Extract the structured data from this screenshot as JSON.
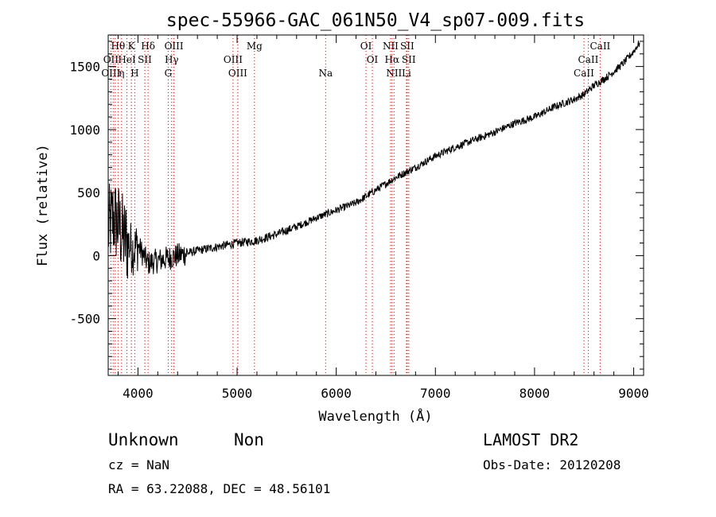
{
  "chart_data": {
    "type": "line",
    "title": "spec-55966-GAC_061N50_V4_sp07-009.fits",
    "xlabel": "Wavelength (Å)",
    "ylabel": "Flux (relative)",
    "xlim": [
      3700,
      9100
    ],
    "ylim": [
      -950,
      1750
    ],
    "x_ticks": [
      4000,
      5000,
      6000,
      7000,
      8000,
      9000
    ],
    "y_ticks": [
      -500,
      0,
      500,
      1000,
      1500
    ],
    "grid": false,
    "series": [
      {
        "x": [
          3700,
          3750,
          3800,
          3850,
          3900,
          3950,
          4000,
          4100,
          4200,
          4300,
          4400,
          4500,
          4600,
          4800,
          5000,
          5200,
          5400,
          5600,
          5800,
          6000,
          6200,
          6400,
          6600,
          6800,
          7000,
          7200,
          7400,
          7600,
          7800,
          8000,
          8200,
          8400,
          8500,
          8600,
          8700,
          8800,
          8900,
          9000,
          9050
        ],
        "y": [
          200,
          300,
          250,
          150,
          100,
          50,
          80,
          -60,
          -40,
          -20,
          0,
          20,
          40,
          70,
          100,
          120,
          170,
          230,
          300,
          360,
          420,
          520,
          620,
          700,
          790,
          860,
          920,
          980,
          1050,
          1100,
          1180,
          1240,
          1280,
          1350,
          1400,
          1460,
          1530,
          1620,
          1680
        ]
      }
    ],
    "line_labels": [
      {
        "x": 3799,
        "label": "Hθ",
        "row": 0
      },
      {
        "x": 3727,
        "label": "OII",
        "row": 1
      },
      {
        "x": 3727,
        "label": "OIII",
        "row": 2
      },
      {
        "x": 3835,
        "label": "η",
        "row": 2
      },
      {
        "x": 3934,
        "label": "K",
        "row": 0
      },
      {
        "x": 3889,
        "label": "HeI",
        "row": 1
      },
      {
        "x": 3968,
        "label": "H",
        "row": 2
      },
      {
        "x": 4069,
        "label": "SII",
        "row": 1
      },
      {
        "x": 4102,
        "label": "Hδ",
        "row": 0
      },
      {
        "x": 4340,
        "label": "Hγ",
        "row": 1
      },
      {
        "x": 4363,
        "label": "OIII",
        "row": 0
      },
      {
        "x": 4305,
        "label": "G",
        "row": 2
      },
      {
        "x": 4959,
        "label": "OIII",
        "row": 1
      },
      {
        "x": 5007,
        "label": "OIII",
        "row": 2
      },
      {
        "x": 5175,
        "label": "Mg",
        "row": 0
      },
      {
        "x": 5893,
        "label": "Na",
        "row": 2
      },
      {
        "x": 6300,
        "label": "OI",
        "row": 0
      },
      {
        "x": 6364,
        "label": "OI",
        "row": 1
      },
      {
        "x": 6548,
        "label": "NII",
        "row": 0
      },
      {
        "x": 6563,
        "label": "Hα",
        "row": 1
      },
      {
        "x": 6583,
        "label": "NII",
        "row": 2
      },
      {
        "x": 6716,
        "label": "SII",
        "row": 0
      },
      {
        "x": 6731,
        "label": "SII",
        "row": 1
      },
      {
        "x": 6708,
        "label": "Li",
        "row": 2
      },
      {
        "x": 8498,
        "label": "CaII",
        "row": 2
      },
      {
        "x": 8542,
        "label": "CaII",
        "row": 1
      },
      {
        "x": 8662,
        "label": "CaII",
        "row": 0
      }
    ],
    "marker_lines": [
      3727,
      3750,
      3771,
      3799,
      3835,
      3889,
      3934,
      3968,
      4069,
      4102,
      4305,
      4340,
      4363,
      4959,
      5007,
      5175,
      5893,
      6300,
      6364,
      6548,
      6563,
      6583,
      6708,
      6716,
      6731,
      8498,
      8542,
      8662
    ]
  },
  "info": {
    "class": "Unknown",
    "subclass": "Non",
    "survey": "LAMOST DR2",
    "cz": "cz = NaN",
    "obs_date": "Obs-Date: 20120208",
    "coords": "RA =  63.22088, DEC =  48.56101"
  },
  "colors": {
    "spectrum": "#000000",
    "marker_line": "#cc0000",
    "axis": "#000000"
  }
}
